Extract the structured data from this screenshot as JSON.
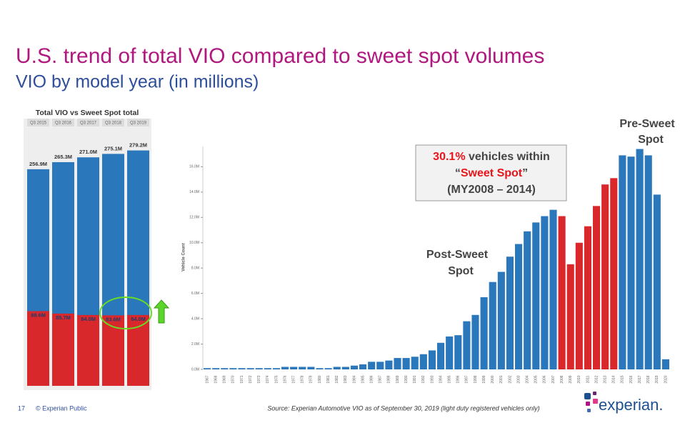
{
  "title": "U.S. trend of total VIO compared to sweet spot volumes",
  "subtitle": "VIO by model year (in millions)",
  "footer": {
    "page": "17",
    "copyright": "© Experian Public",
    "source": "Source: Experian Automotive VIO as of September 30, 2019  (light duty registered vehicles only)"
  },
  "logo": "experian.",
  "chart_data": [
    {
      "type": "bar",
      "title": "Total VIO vs Sweet Spot total",
      "categories": [
        "Q3 2015",
        "Q3 2016",
        "Q3 2017",
        "Q3 2018",
        "Q3 2019"
      ],
      "series": [
        {
          "color": "#2a77bb",
          "values": [
            256.9,
            265.3,
            271.0,
            275.1,
            279.2
          ],
          "value_labels": [
            "256.9M",
            "265.3M",
            "271.0M",
            "275.1M",
            "279.2M"
          ]
        },
        {
          "color": "#d9282b",
          "values": [
            88.6,
            85.7,
            84.0,
            83.6,
            84.0
          ],
          "value_labels": [
            "88.6M",
            "85.7M",
            "84.0M",
            "83.6M",
            "84.0M"
          ]
        }
      ]
    },
    {
      "type": "bar",
      "y_label": "Vehicle Count",
      "categories": [
        "1967",
        "1968",
        "1969",
        "1970",
        "1971",
        "1972",
        "1973",
        "1974",
        "1975",
        "1976",
        "1977",
        "1978",
        "1979",
        "1980",
        "1981",
        "1982",
        "1983",
        "1984",
        "1985",
        "1986",
        "1987",
        "1988",
        "1989",
        "1990",
        "1991",
        "1992",
        "1993",
        "1994",
        "1995",
        "1996",
        "1997",
        "1998",
        "1999",
        "2000",
        "2001",
        "2002",
        "2003",
        "2004",
        "2005",
        "2006",
        "2007",
        "2008",
        "2009",
        "2010",
        "2011",
        "2012",
        "2013",
        "2014",
        "2015",
        "2016",
        "2017",
        "2018",
        "2019",
        "2020"
      ],
      "values": [
        0.1,
        0.1,
        0.1,
        0.1,
        0.1,
        0.1,
        0.1,
        0.1,
        0.1,
        0.2,
        0.2,
        0.2,
        0.2,
        0.1,
        0.1,
        0.2,
        0.2,
        0.3,
        0.4,
        0.6,
        0.6,
        0.7,
        0.9,
        0.9,
        1.0,
        1.2,
        1.5,
        2.1,
        2.6,
        2.7,
        3.8,
        4.3,
        5.7,
        6.9,
        7.7,
        8.9,
        9.9,
        10.9,
        11.6,
        12.1,
        12.6,
        12.1,
        8.3,
        10.0,
        11.3,
        12.9,
        14.6,
        15.1,
        16.9,
        16.8,
        17.4,
        16.9,
        13.8,
        0.8
      ],
      "colors": [
        "#2a77bb",
        "#2a77bb",
        "#2a77bb",
        "#2a77bb",
        "#2a77bb",
        "#2a77bb",
        "#2a77bb",
        "#2a77bb",
        "#2a77bb",
        "#2a77bb",
        "#2a77bb",
        "#2a77bb",
        "#2a77bb",
        "#2a77bb",
        "#2a77bb",
        "#2a77bb",
        "#2a77bb",
        "#2a77bb",
        "#2a77bb",
        "#2a77bb",
        "#2a77bb",
        "#2a77bb",
        "#2a77bb",
        "#2a77bb",
        "#2a77bb",
        "#2a77bb",
        "#2a77bb",
        "#2a77bb",
        "#2a77bb",
        "#2a77bb",
        "#2a77bb",
        "#2a77bb",
        "#2a77bb",
        "#2a77bb",
        "#2a77bb",
        "#2a77bb",
        "#2a77bb",
        "#2a77bb",
        "#2a77bb",
        "#2a77bb",
        "#2a77bb",
        "#d9282b",
        "#d9282b",
        "#d9282b",
        "#d9282b",
        "#d9282b",
        "#d9282b",
        "#d9282b",
        "#2a77bb",
        "#2a77bb",
        "#2a77bb",
        "#2a77bb",
        "#2a77bb",
        "#2a77bb"
      ],
      "ylim": [
        0,
        17.6
      ],
      "yticks": [
        {
          "value": 0,
          "label": "0.0M"
        },
        {
          "value": 2,
          "label": "2.0M"
        },
        {
          "value": 4,
          "label": "4.0M"
        },
        {
          "value": 6,
          "label": "6.0M"
        },
        {
          "value": 8,
          "label": "8.0M"
        },
        {
          "value": 10,
          "label": "10.0M"
        },
        {
          "value": 12,
          "label": "12.0M"
        },
        {
          "value": 14,
          "label": "14.0M"
        },
        {
          "value": 16,
          "label": "16.0M"
        }
      ],
      "annotations": {
        "sweet_spot": {
          "line1": {
            "highlight": "30.1%",
            "text": " vehicles within"
          },
          "line2": {
            "open": "“",
            "highlight": "Sweet Spot",
            "close": "”"
          },
          "line3": "(MY2008 – 2014)"
        },
        "post": [
          "Post-Sweet",
          "Spot"
        ],
        "pre": [
          "Pre-Sweet",
          "Spot"
        ]
      }
    }
  ]
}
